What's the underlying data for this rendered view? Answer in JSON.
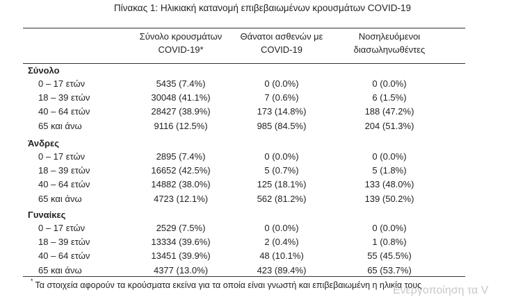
{
  "title": "Πίνακας 1: Ηλικιακή κατανομή επιβεβαιωμένων κρουσμάτων COVID-19",
  "headers": {
    "c1_line1": "Σύνολο κρουσμάτων",
    "c1_line2": "COVID-19*",
    "c2_line1": "Θάνατοι ασθενών με",
    "c2_line2": "COVID-19",
    "c3_line1": "Νοσηλευόμενοι",
    "c3_line2": "διασωληνωθέντες"
  },
  "sections": [
    {
      "name": "Σύνολο",
      "rows": [
        {
          "label": "0 – 17 ετών",
          "cases": "5435 (7.4%)",
          "deaths": "0 (0.0%)",
          "intubated": "0 (0.0%)"
        },
        {
          "label": "18 – 39 ετών",
          "cases": "30048 (41.1%)",
          "deaths": "7 (0.6%)",
          "intubated": "6 (1.5%)"
        },
        {
          "label": "40 – 64 ετών",
          "cases": "28427 (38.9%)",
          "deaths": "173 (14.8%)",
          "intubated": "188 (47.2%)"
        },
        {
          "label": "65 και άνω",
          "cases": "9116 (12.5%)",
          "deaths": "985 (84.5%)",
          "intubated": "204 (51.3%)"
        }
      ]
    },
    {
      "name": "Άνδρες",
      "rows": [
        {
          "label": "0 – 17 ετών",
          "cases": "2895 (7.4%)",
          "deaths": "0 (0.0%)",
          "intubated": "0 (0.0%)"
        },
        {
          "label": "18 – 39 ετών",
          "cases": "16652 (42.5%)",
          "deaths": "5 (0.7%)",
          "intubated": "5 (1.8%)"
        },
        {
          "label": "40 – 64 ετών",
          "cases": "14882 (38.0%)",
          "deaths": "125 (18.1%)",
          "intubated": "133 (48.0%)"
        },
        {
          "label": "65 και άνω",
          "cases": "4723 (12.1%)",
          "deaths": "562 (81.2%)",
          "intubated": "139 (50.2%)"
        }
      ]
    },
    {
      "name": "Γυναίκες",
      "rows": [
        {
          "label": "0 – 17 ετών",
          "cases": "2529 (7.5%)",
          "deaths": "0 (0.0%)",
          "intubated": "0 (0.0%)"
        },
        {
          "label": "18 – 39 ετών",
          "cases": "13334 (39.6%)",
          "deaths": "2 (0.4%)",
          "intubated": "1 (0.8%)"
        },
        {
          "label": "40 – 64 ετών",
          "cases": "13451 (39.9%)",
          "deaths": "48 (10.1%)",
          "intubated": "55 (45.5%)"
        },
        {
          "label": "65 και άνω",
          "cases": "4377 (13.0%)",
          "deaths": "423 (89.4%)",
          "intubated": "65 (53.7%)"
        }
      ]
    }
  ],
  "footnote": {
    "mark": "*",
    "text": "Τα στοιχεία αφορούν τα κρούσματα εκείνα για τα οποία είναι γνωστή και επιβεβαιωμένη η ηλικία τους"
  },
  "watermark": "Ενεργοποίηση τα V"
}
